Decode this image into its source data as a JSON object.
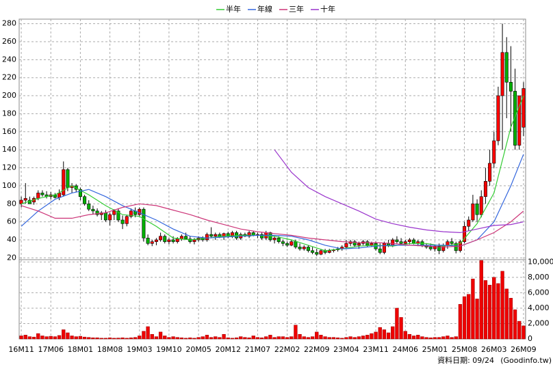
{
  "chart_data": {
    "type": "candlestick",
    "categories": [
      "16M11",
      null,
      null,
      null,
      null,
      null,
      null,
      "17M06",
      null,
      null,
      null,
      null,
      null,
      null,
      "18M01",
      null,
      null,
      null,
      null,
      null,
      null,
      "18M08",
      null,
      null,
      null,
      null,
      null,
      null,
      "19M03",
      null,
      null,
      null,
      null,
      null,
      null,
      "19M10",
      null,
      null,
      null,
      null,
      null,
      null,
      "20M05",
      null,
      null,
      null,
      null,
      null,
      null,
      "20M12",
      null,
      null,
      null,
      null,
      null,
      null,
      "21M07",
      null,
      null,
      null,
      null,
      null,
      null,
      "22M02",
      null,
      null,
      null,
      null,
      null,
      null,
      "22M09",
      null,
      null,
      null,
      null,
      null,
      null,
      "23M04",
      null,
      null,
      null,
      null,
      null,
      null,
      "23M11",
      null,
      null,
      null,
      null,
      null,
      null,
      "24M06",
      null,
      null,
      null,
      null,
      null,
      null,
      "25M01",
      null,
      null,
      null,
      null,
      null,
      null,
      "25M08",
      null,
      null,
      null,
      null,
      null,
      null,
      "26M03",
      null,
      null,
      null,
      null,
      null,
      null,
      "26M09"
    ],
    "open": [
      80,
      84,
      84,
      82,
      86,
      92,
      90,
      88,
      90,
      87,
      90,
      118,
      98,
      100,
      96,
      88,
      80,
      74,
      72,
      68,
      70,
      62,
      68,
      72,
      62,
      58,
      66,
      72,
      68,
      74,
      42,
      36,
      38,
      40,
      44,
      38,
      40,
      38,
      41,
      44,
      41,
      38,
      40,
      42,
      40,
      46,
      44,
      46,
      43,
      47,
      44,
      48,
      42,
      46,
      44,
      48,
      45,
      46,
      42,
      48,
      40,
      42,
      38,
      36,
      34,
      38,
      32,
      30,
      32,
      28,
      26,
      24,
      28,
      26,
      28,
      29,
      30,
      32,
      36,
      38,
      34,
      36,
      38,
      34,
      36,
      30,
      26,
      36,
      34,
      40,
      38,
      36,
      38,
      40,
      36,
      38,
      34,
      32,
      30,
      33,
      28,
      34,
      38,
      36,
      28,
      38,
      55,
      62,
      80,
      68,
      88,
      105,
      125,
      150,
      200,
      248,
      215,
      205,
      145,
      165
    ],
    "high": [
      88,
      103,
      88,
      88,
      95,
      95,
      94,
      93,
      92,
      96,
      127,
      120,
      103,
      102,
      98,
      90,
      84,
      78,
      75,
      72,
      73,
      70,
      74,
      75,
      67,
      68,
      75,
      76,
      76,
      76,
      46,
      40,
      42,
      48,
      46,
      42,
      44,
      43,
      46,
      48,
      44,
      42,
      44,
      44,
      48,
      54,
      48,
      48,
      48,
      49,
      50,
      50,
      48,
      48,
      50,
      50,
      48,
      48,
      50,
      49,
      44,
      44,
      40,
      38,
      40,
      40,
      36,
      34,
      34,
      32,
      30,
      30,
      30,
      30,
      30,
      32,
      34,
      40,
      40,
      40,
      38,
      40,
      40,
      38,
      38,
      36,
      38,
      40,
      42,
      44,
      42,
      40,
      42,
      42,
      40,
      40,
      36,
      36,
      35,
      36,
      36,
      40,
      42,
      38,
      40,
      60,
      66,
      90,
      85,
      95,
      120,
      140,
      160,
      210,
      280,
      265,
      255,
      230,
      200,
      215
    ],
    "low": [
      76,
      80,
      80,
      79,
      84,
      88,
      86,
      85,
      86,
      84,
      88,
      94,
      92,
      93,
      84,
      78,
      72,
      68,
      66,
      62,
      60,
      56,
      62,
      60,
      52,
      55,
      64,
      65,
      66,
      38,
      34,
      33,
      34,
      38,
      36,
      35,
      36,
      36,
      39,
      40,
      36,
      35,
      38,
      38,
      38,
      42,
      40,
      42,
      40,
      42,
      42,
      40,
      40,
      43,
      42,
      44,
      42,
      40,
      40,
      38,
      36,
      36,
      33,
      32,
      33,
      30,
      28,
      28,
      26,
      24,
      22,
      23,
      24,
      25,
      26,
      27,
      28,
      30,
      33,
      32,
      30,
      34,
      32,
      32,
      28,
      24,
      24,
      32,
      32,
      36,
      34,
      34,
      35,
      35,
      33,
      32,
      30,
      28,
      27,
      24,
      26,
      30,
      33,
      25,
      26,
      36,
      50,
      60,
      60,
      65,
      80,
      100,
      120,
      145,
      140,
      175,
      160,
      140,
      140,
      155
    ],
    "close": [
      84,
      86,
      80,
      86,
      92,
      90,
      88,
      90,
      87,
      92,
      118,
      98,
      100,
      96,
      88,
      80,
      74,
      72,
      68,
      70,
      62,
      68,
      72,
      62,
      58,
      66,
      72,
      68,
      74,
      42,
      36,
      38,
      40,
      44,
      38,
      40,
      38,
      41,
      44,
      41,
      38,
      40,
      42,
      40,
      46,
      44,
      46,
      43,
      47,
      44,
      48,
      42,
      46,
      44,
      48,
      45,
      46,
      42,
      48,
      40,
      42,
      38,
      36,
      34,
      38,
      32,
      30,
      32,
      28,
      26,
      24,
      28,
      26,
      28,
      29,
      30,
      32,
      36,
      38,
      34,
      36,
      38,
      34,
      36,
      30,
      26,
      36,
      34,
      40,
      38,
      36,
      38,
      40,
      36,
      38,
      34,
      32,
      30,
      33,
      28,
      34,
      38,
      36,
      28,
      38,
      55,
      62,
      80,
      68,
      88,
      105,
      125,
      150,
      200,
      248,
      215,
      205,
      145,
      200,
      208
    ],
    "up_color": "#ff0000",
    "down_color": "#00b000",
    "ylim": [
      18,
      285
    ],
    "yticks": [
      20,
      40,
      60,
      80,
      100,
      120,
      140,
      160,
      180,
      200,
      220,
      240,
      260,
      280
    ],
    "grid": true,
    "series": [
      {
        "name": "半年",
        "color": "#33cc33",
        "x": [
          0,
          4,
          8,
          12,
          16,
          20,
          24,
          28,
          32,
          36,
          40,
          44,
          48,
          52,
          56,
          60,
          64,
          68,
          72,
          76,
          80,
          84,
          88,
          92,
          96,
          100,
          104,
          108,
          112,
          116,
          119
        ],
        "values": [
          80,
          86,
          90,
          100,
          90,
          78,
          68,
          66,
          55,
          42,
          40,
          42,
          44,
          45,
          45,
          44,
          40,
          34,
          28,
          30,
          33,
          34,
          33,
          36,
          36,
          33,
          36,
          58,
          92,
          165,
          200
        ]
      },
      {
        "name": "年線",
        "color": "#3366dd",
        "x": [
          0,
          4,
          8,
          12,
          16,
          20,
          24,
          28,
          32,
          36,
          40,
          44,
          48,
          52,
          56,
          60,
          64,
          68,
          72,
          76,
          80,
          84,
          88,
          92,
          96,
          100,
          104,
          108,
          112,
          116,
          119
        ],
        "values": [
          55,
          72,
          85,
          92,
          96,
          88,
          78,
          70,
          62,
          52,
          44,
          42,
          43,
          44,
          45,
          45,
          44,
          40,
          34,
          30,
          31,
          33,
          34,
          34,
          34,
          34,
          33,
          40,
          60,
          100,
          135
        ]
      },
      {
        "name": "三年",
        "color": "#cc3377",
        "x": [
          0,
          4,
          8,
          12,
          16,
          20,
          24,
          28,
          32,
          36,
          40,
          44,
          48,
          52,
          56,
          60,
          64,
          68,
          72,
          76,
          80,
          84,
          88,
          92,
          96,
          100,
          104,
          108,
          112,
          116,
          119
        ],
        "values": [
          78,
          72,
          64,
          64,
          68,
          70,
          76,
          80,
          78,
          73,
          68,
          62,
          57,
          52,
          49,
          47,
          45,
          42,
          40,
          38,
          37,
          37,
          36,
          34,
          33,
          32,
          33,
          40,
          48,
          60,
          72
        ]
      },
      {
        "name": "十年",
        "color": "#9933cc",
        "x": [
          60,
          64,
          68,
          72,
          76,
          80,
          84,
          88,
          92,
          96,
          100,
          104,
          108,
          112,
          116,
          119
        ],
        "values": [
          140,
          115,
          98,
          88,
          80,
          72,
          63,
          58,
          54,
          51,
          49,
          48,
          52,
          56,
          57,
          60
        ]
      }
    ],
    "volume": {
      "type": "bar",
      "color": "#ee0000",
      "values": [
        400,
        500,
        300,
        250,
        700,
        400,
        300,
        350,
        300,
        450,
        1200,
        800,
        400,
        300,
        350,
        250,
        200,
        150,
        150,
        100,
        100,
        150,
        100,
        120,
        150,
        100,
        150,
        200,
        400,
        1000,
        1600,
        600,
        300,
        900,
        400,
        200,
        300,
        200,
        150,
        100,
        150,
        100,
        200,
        300,
        500,
        200,
        300,
        200,
        600,
        150,
        100,
        150,
        300,
        200,
        150,
        400,
        200,
        150,
        300,
        500,
        200,
        300,
        300,
        200,
        300,
        1800,
        600,
        300,
        200,
        300,
        900,
        500,
        300,
        200,
        200,
        150,
        100,
        200,
        300,
        200,
        300,
        400,
        500,
        700,
        900,
        1500,
        1200,
        800,
        1600,
        4000,
        2800,
        1000,
        600,
        400,
        500,
        300,
        200,
        150,
        200,
        200,
        300,
        400,
        200,
        300,
        4500,
        5500,
        5800,
        7800,
        5200,
        10200,
        7600,
        7000,
        8000,
        7200,
        8800,
        6500,
        5300,
        3800,
        2300,
        1700
      ],
      "ylim": [
        0,
        10300
      ],
      "yticks": [
        0,
        {
          "value": 2000,
          "label": "2,000"
        },
        {
          "value": 4000,
          "label": "4,000"
        },
        {
          "value": 6000,
          "label": "6,000"
        },
        {
          "value": 8000,
          "label": "8,000"
        },
        {
          "value": 10000,
          "label": "10,000"
        }
      ]
    },
    "date_label": "資料日期: 09/24",
    "source": "(Goodinfo.tw)"
  }
}
